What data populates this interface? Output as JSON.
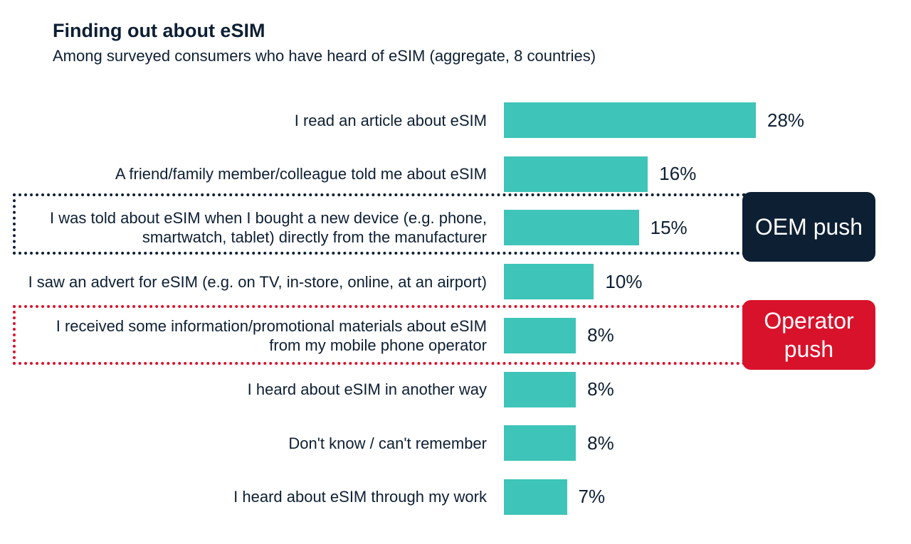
{
  "chart_data": {
    "type": "bar",
    "orientation": "horizontal",
    "title": "Finding out about eSIM",
    "subtitle": "Among surveyed consumers who have heard of eSIM (aggregate, 8 countries)",
    "categories": [
      "I read an article about eSIM",
      "A friend/family member/colleague told me about eSIM",
      "I was told about eSIM when I bought a new device (e.g. phone, smartwatch, tablet) directly from the manufacturer",
      "I saw an advert for eSIM (e.g. on TV, in-store, online, at an airport)",
      "I received some information/promotional materials about eSIM from my mobile phone operator",
      "I heard about eSIM in another way",
      "Don't know / can't remember",
      "I heard about eSIM through my work"
    ],
    "values": [
      28,
      16,
      15,
      10,
      8,
      8,
      8,
      7
    ],
    "value_labels": [
      "28%",
      "16%",
      "15%",
      "10%",
      "8%",
      "8%",
      "8%",
      "7%"
    ],
    "color": "#3ec4b8",
    "annotations": [
      {
        "text": "OEM push",
        "color": "#0d1f33"
      },
      {
        "text": "Operator push",
        "color": "#d9122b"
      }
    ]
  }
}
